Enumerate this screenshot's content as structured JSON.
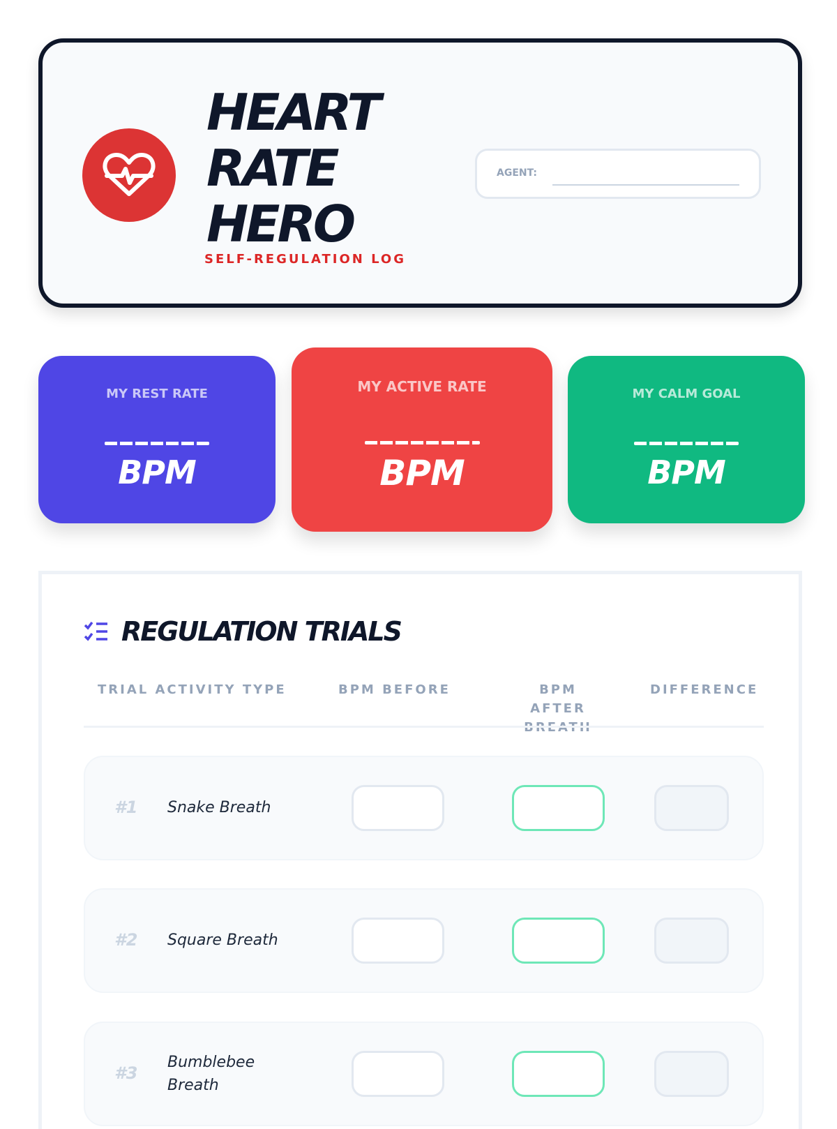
{
  "header": {
    "title_lines": [
      "HEART",
      "RATE",
      "HERO"
    ],
    "subtitle": "SELF-REGULATION LOG",
    "agent_label": "AGENT:",
    "agent_value": "",
    "logo_icon": "heart-pulse-icon"
  },
  "stats": [
    {
      "label": "MY REST RATE",
      "unit": "BPM",
      "color": "#4f46e5"
    },
    {
      "label": "MY ACTIVE RATE",
      "unit": "BPM",
      "color": "#ef4444"
    },
    {
      "label": "MY CALM GOAL",
      "unit": "BPM",
      "color": "#10b981"
    }
  ],
  "trials": {
    "title": "REGULATION TRIALS",
    "icon": "checklist-icon",
    "columns": [
      "TRIAL ACTIVITY TYPE",
      "BPM BEFORE",
      "BPM AFTER BREATH",
      "DIFFERENCE"
    ],
    "rows": [
      {
        "num": "#1",
        "name": "Snake Breath"
      },
      {
        "num": "#2",
        "name": "Square Breath"
      },
      {
        "num": "#3",
        "name": "Bumblebee Breath"
      }
    ]
  }
}
